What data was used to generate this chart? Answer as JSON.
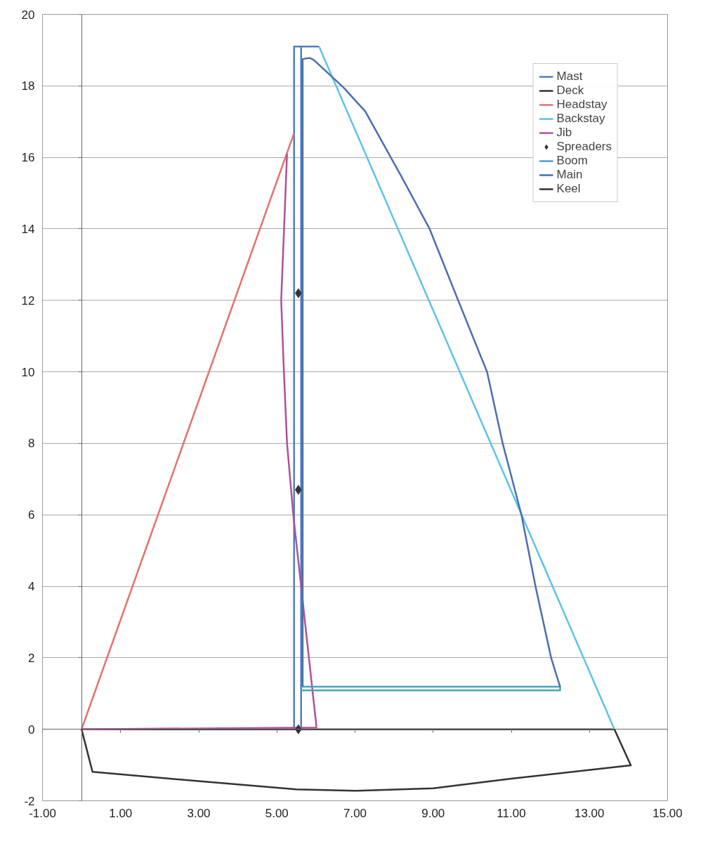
{
  "chart_data": {
    "type": "line",
    "xlim": [
      -1,
      15
    ],
    "ylim": [
      -2,
      20
    ],
    "xticks": [
      {
        "value": -1,
        "label": "-1.00"
      },
      {
        "value": 1,
        "label": "1.00"
      },
      {
        "value": 3,
        "label": "3.00"
      },
      {
        "value": 5,
        "label": "5.00"
      },
      {
        "value": 7,
        "label": "7.00"
      },
      {
        "value": 9,
        "label": "9.00"
      },
      {
        "value": 11,
        "label": "11.00"
      },
      {
        "value": 13,
        "label": "13.00"
      },
      {
        "value": 15,
        "label": "15.00"
      }
    ],
    "yticks": [
      -2,
      0,
      2,
      4,
      6,
      8,
      10,
      12,
      14,
      16,
      18,
      20
    ],
    "grid": "y",
    "legend": "top right",
    "marker": "none",
    "line_style": "solid",
    "series": [
      {
        "name": "Mast",
        "color": "#4f7fc0",
        "x": [
          5.44,
          5.44,
          6.08,
          null,
          5.62,
          5.62
        ],
        "values": [
          0,
          19.1,
          19.1,
          null,
          19.1,
          0
        ]
      },
      {
        "name": "Deck",
        "color": "#333333",
        "x": [
          0,
          13.64
        ],
        "values": [
          0,
          0
        ]
      },
      {
        "name": "Headstay",
        "color": "#e8706a",
        "x": [
          0,
          5.43
        ],
        "values": [
          0,
          16.65
        ]
      },
      {
        "name": "Backstay",
        "color": "#5cc4e8",
        "x": [
          6.08,
          13.64
        ],
        "values": [
          19.1,
          0
        ]
      },
      {
        "name": "Jib",
        "color": "#b0509a",
        "x": [
          5.26,
          5.11,
          5.18,
          5.26,
          5.42,
          6.01,
          6.01,
          0
        ],
        "values": [
          16.1,
          12,
          10,
          8,
          6,
          0.1,
          0.05,
          0
        ]
      },
      {
        "name": "Spreaders",
        "type": "scatter",
        "marker": "diamond",
        "color": "#333333",
        "x": [
          5.55,
          5.55,
          5.55
        ],
        "values": [
          12.2,
          6.7,
          0
        ]
      },
      {
        "name": "Boom",
        "color": "#4aa0c8",
        "x": [
          5.62,
          12.25,
          12.25,
          5.62
        ],
        "values": [
          1.19,
          1.19,
          1.09,
          1.09
        ]
      },
      {
        "name": "Main",
        "color": "#4a6fb0",
        "x": [
          12.25,
          12.02,
          11.62,
          11.26,
          10.78,
          10.38,
          9.64,
          8.91,
          8.18,
          7.26,
          6.71,
          5.94,
          5.84,
          5.66,
          5.66
        ],
        "values": [
          1.19,
          2,
          4,
          6,
          8,
          10,
          12,
          14,
          15.48,
          17.29,
          17.95,
          18.73,
          18.78,
          18.75,
          1.19
        ]
      },
      {
        "name": "Keel",
        "color": "#333333",
        "x": [
          0,
          0.28,
          3,
          5.5,
          7,
          9,
          11,
          14.06,
          13.64
        ],
        "values": [
          0,
          -1.19,
          -1.45,
          -1.68,
          -1.72,
          -1.65,
          -1.38,
          -1.01,
          0
        ]
      }
    ]
  }
}
